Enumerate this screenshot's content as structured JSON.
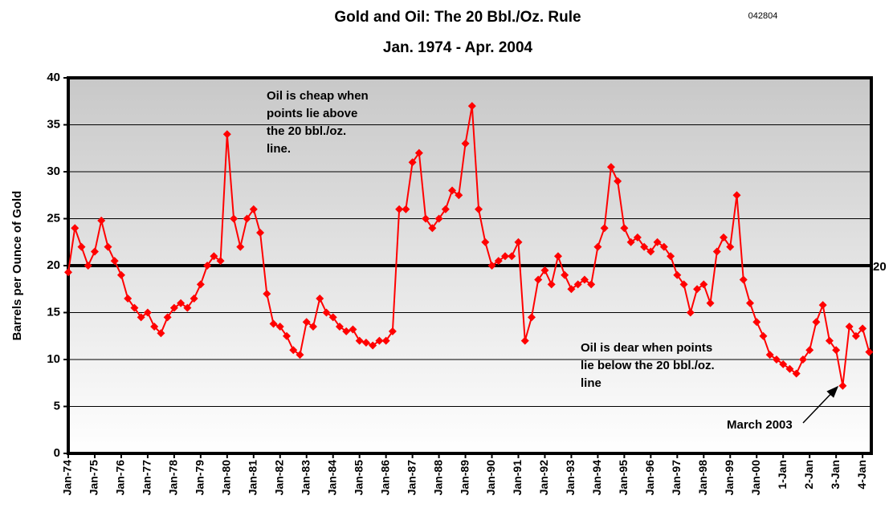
{
  "chart_data": {
    "type": "line",
    "title": "Gold and Oil: The 20 Bbl./Oz. Rule",
    "subtitle": "Jan. 1974 - Apr. 2004",
    "code": "042804",
    "y_label": "Barrels per Ounce of Gold",
    "ylim": [
      0,
      40
    ],
    "yticks": [
      0,
      5,
      10,
      15,
      20,
      25,
      30,
      35,
      40
    ],
    "grid": true,
    "xlim": [
      1974,
      2004.33
    ],
    "xticks": [
      {
        "value": 1974,
        "label": "Jan-74"
      },
      {
        "value": 1975,
        "label": "Jan-75"
      },
      {
        "value": 1976,
        "label": "Jan-76"
      },
      {
        "value": 1977,
        "label": "Jan-77"
      },
      {
        "value": 1978,
        "label": "Jan-78"
      },
      {
        "value": 1979,
        "label": "Jan-79"
      },
      {
        "value": 1980,
        "label": "Jan-80"
      },
      {
        "value": 1981,
        "label": "Jan-81"
      },
      {
        "value": 1982,
        "label": "Jan-82"
      },
      {
        "value": 1983,
        "label": "Jan-83"
      },
      {
        "value": 1984,
        "label": "Jan-84"
      },
      {
        "value": 1985,
        "label": "Jan-85"
      },
      {
        "value": 1986,
        "label": "Jan-86"
      },
      {
        "value": 1987,
        "label": "Jan-87"
      },
      {
        "value": 1988,
        "label": "Jan-88"
      },
      {
        "value": 1989,
        "label": "Jan-89"
      },
      {
        "value": 1990,
        "label": "Jan-90"
      },
      {
        "value": 1991,
        "label": "Jan-91"
      },
      {
        "value": 1992,
        "label": "Jan-92"
      },
      {
        "value": 1993,
        "label": "Jan-93"
      },
      {
        "value": 1994,
        "label": "Jan-94"
      },
      {
        "value": 1995,
        "label": "Jan-95"
      },
      {
        "value": 1996,
        "label": "Jan-96"
      },
      {
        "value": 1997,
        "label": "Jan-97"
      },
      {
        "value": 1998,
        "label": "Jan-98"
      },
      {
        "value": 1999,
        "label": "Jan-99"
      },
      {
        "value": 2000,
        "label": "Jan-00"
      },
      {
        "value": 2001,
        "label": "1-Jan"
      },
      {
        "value": 2002,
        "label": "2-Jan"
      },
      {
        "value": 2003,
        "label": "3-Jan"
      },
      {
        "value": 2004,
        "label": "4-Jan"
      }
    ],
    "reference_line": 20,
    "annotations": [
      [
        "Oil is cheap when",
        "points lie above",
        "the 20 bbl./oz.",
        "line."
      ],
      [
        "Oil is dear when points",
        "lie below the 20 bbl./oz.",
        "line"
      ],
      [
        "March 2003"
      ]
    ],
    "series": [
      {
        "color": "#ff0000",
        "x": [
          1974,
          1974.25,
          1974.5,
          1974.75,
          1975,
          1975.25,
          1975.5,
          1975.75,
          1976,
          1976.25,
          1976.5,
          1976.75,
          1977,
          1977.25,
          1977.5,
          1977.75,
          1978,
          1978.25,
          1978.5,
          1978.75,
          1979,
          1979.25,
          1979.5,
          1979.75,
          1980,
          1980.25,
          1980.5,
          1980.75,
          1981,
          1981.25,
          1981.5,
          1981.75,
          1982,
          1982.25,
          1982.5,
          1982.75,
          1983,
          1983.25,
          1983.5,
          1983.75,
          1984,
          1984.25,
          1984.5,
          1984.75,
          1985,
          1985.25,
          1985.5,
          1985.75,
          1986,
          1986.25,
          1986.5,
          1986.75,
          1987,
          1987.25,
          1987.5,
          1987.75,
          1988,
          1988.25,
          1988.5,
          1988.75,
          1989,
          1989.25,
          1989.5,
          1989.75,
          1990,
          1990.25,
          1990.5,
          1990.75,
          1991,
          1991.25,
          1991.5,
          1991.75,
          1992,
          1992.25,
          1992.5,
          1992.75,
          1993,
          1993.25,
          1993.5,
          1993.75,
          1994,
          1994.25,
          1994.5,
          1994.75,
          1995,
          1995.25,
          1995.5,
          1995.75,
          1996,
          1996.25,
          1996.5,
          1996.75,
          1997,
          1997.25,
          1997.5,
          1997.75,
          1998,
          1998.25,
          1998.5,
          1998.75,
          1999,
          1999.25,
          1999.5,
          1999.75,
          2000,
          2000.25,
          2000.5,
          2000.75,
          2001,
          2001.25,
          2001.5,
          2001.75,
          2002,
          2002.25,
          2002.5,
          2002.75,
          2003,
          2003.25,
          2003.5,
          2003.75,
          2004,
          2004.25
        ],
        "values": [
          19.3,
          24,
          22,
          20,
          21.5,
          24.8,
          22,
          20.5,
          19,
          16.5,
          15.5,
          14.5,
          15,
          13.5,
          12.8,
          14.5,
          15.5,
          16,
          15.5,
          16.5,
          18,
          20,
          21,
          20.5,
          34,
          25,
          22,
          25,
          26,
          23.5,
          17,
          13.8,
          13.5,
          12.5,
          11,
          10.5,
          14,
          13.5,
          16.5,
          15,
          14.5,
          13.5,
          13,
          13.2,
          12,
          11.8,
          11.5,
          12,
          12,
          13,
          26,
          26,
          31,
          32,
          25,
          24,
          25,
          26,
          28,
          27.5,
          33,
          37,
          26,
          22.5,
          20,
          20.5,
          21,
          21,
          22.5,
          12,
          14.5,
          18.5,
          19.5,
          18,
          21,
          19,
          17.5,
          18,
          18.5,
          18,
          22,
          24,
          30.5,
          29,
          24,
          22.5,
          23,
          22,
          21.5,
          22.5,
          22,
          21,
          19,
          18,
          15,
          17.5,
          18,
          16,
          21.5,
          23,
          22,
          27.5,
          18.5,
          16,
          14,
          12.5,
          10.5,
          10,
          9.5,
          9,
          8.5,
          10,
          11,
          14,
          15.8,
          12,
          11,
          7.2,
          13.5,
          12.5,
          13.3,
          10.8
        ]
      }
    ]
  }
}
